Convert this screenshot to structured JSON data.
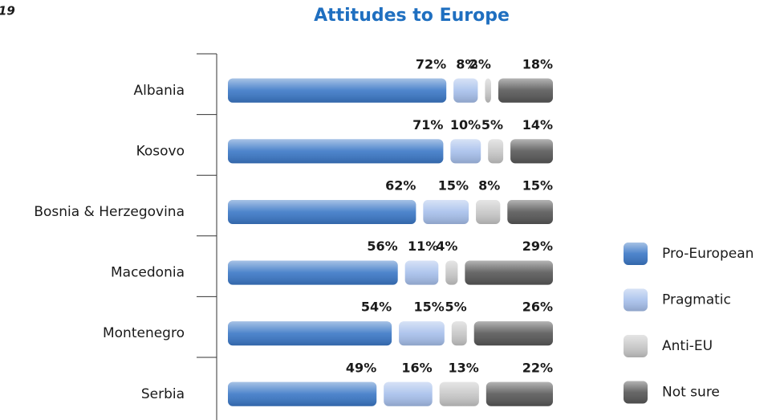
{
  "page_number": "19",
  "chart_data": {
    "type": "bar",
    "orientation": "horizontal",
    "stacked": true,
    "title": "Attitudes to Europe",
    "categories": [
      "Albania",
      "Kosovo",
      "Bosnia & Herzegovina",
      "Macedonia",
      "Montenegro",
      "Serbia"
    ],
    "series": [
      {
        "name": "Pro-European",
        "color": "#3a77c6",
        "values": [
          72,
          71,
          62,
          56,
          54,
          49
        ],
        "value_labels": [
          "72%",
          "71%",
          "62%",
          "56%",
          "54%",
          "49%"
        ]
      },
      {
        "name": "Pragmatic",
        "color": "#a6bfeb",
        "values": [
          8,
          10,
          15,
          11,
          15,
          16
        ],
        "value_labels": [
          "8%",
          "10%",
          "15%",
          "11%",
          "15%",
          "16%"
        ]
      },
      {
        "name": "Anti-EU",
        "color": "#c6c6c6",
        "values": [
          2,
          5,
          8,
          4,
          5,
          13
        ],
        "value_labels": [
          "2%",
          "5%",
          "8%",
          "4%",
          "5%",
          "13%"
        ]
      },
      {
        "name": "Not sure",
        "color": "#575757",
        "values": [
          18,
          14,
          15,
          29,
          26,
          22
        ],
        "value_labels": [
          "18%",
          "14%",
          "15%",
          "29%",
          "26%",
          "22%"
        ]
      }
    ],
    "legend": "right"
  }
}
